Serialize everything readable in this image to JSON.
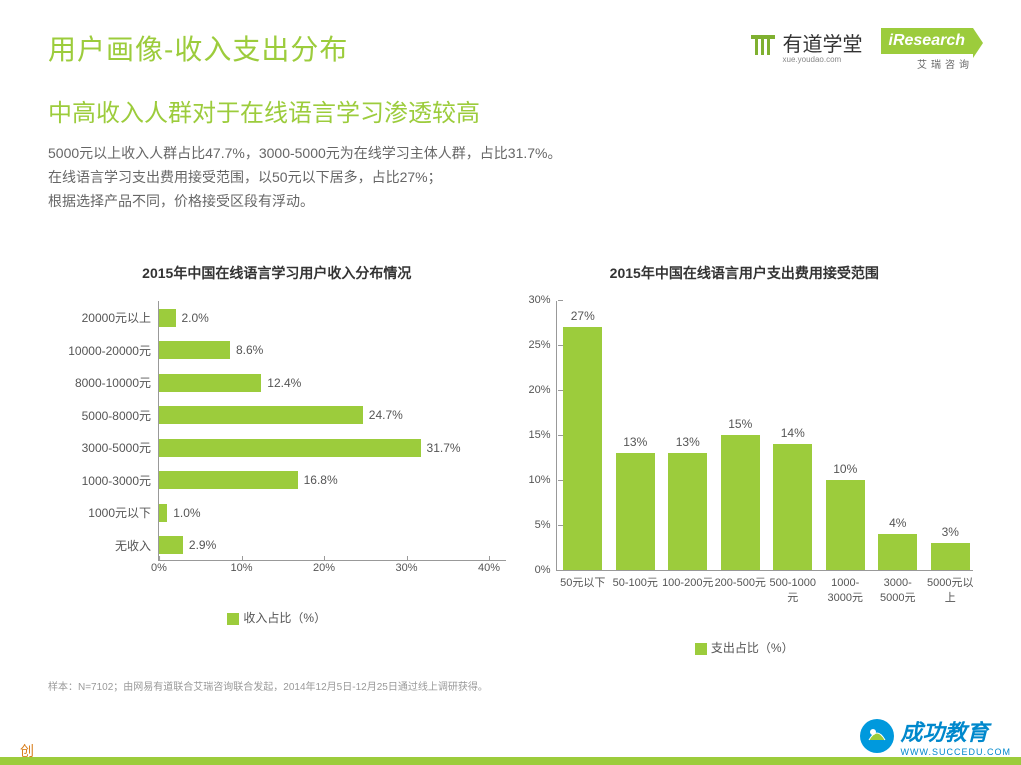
{
  "header": {
    "title": "用户画像-收入支出分布",
    "youdao_name": "有道学堂",
    "youdao_url": "xue.youdao.com",
    "iresearch_en": "iResearch",
    "iresearch_cn": "艾瑞咨询"
  },
  "subtitle": "中高收入人群对于在线语言学习渗透较高",
  "description": {
    "line1": "5000元以上收入人群占比47.7%，3000-5000元为在线学习主体人群，占比31.7%。",
    "line2": "在线语言学习支出费用接受范围，以50元以下居多，占比27%；",
    "line3": "根据选择产品不同，价格接受区段有浮动。"
  },
  "income_chart": {
    "type": "horizontal-bar",
    "title": "2015年中国在线语言学习用户收入分布情况",
    "categories": [
      "20000元以上",
      "10000-20000元",
      "8000-10000元",
      "5000-8000元",
      "3000-5000元",
      "1000-3000元",
      "1000元以下",
      "无收入"
    ],
    "values": [
      2.0,
      8.6,
      12.4,
      24.7,
      31.7,
      16.8,
      1.0,
      2.9
    ],
    "value_labels": [
      "2.0%",
      "8.6%",
      "12.4%",
      "24.7%",
      "31.7%",
      "16.8%",
      "1.0%",
      "2.9%"
    ],
    "bar_color": "#9ccc3c",
    "xlim": [
      0,
      40
    ],
    "xtick_step": 10,
    "xtick_labels": [
      "0%",
      "10%",
      "20%",
      "30%",
      "40%"
    ],
    "legend": "收入占比（%）",
    "label_fontsize": 12,
    "background_color": "#ffffff",
    "axis_color": "#999999"
  },
  "spending_chart": {
    "type": "vertical-bar",
    "title": "2015年中国在线语言用户支出费用接受范围",
    "categories": [
      "50元以下",
      "50-100元",
      "100-200元",
      "200-500元",
      "500-1000元",
      "1000-3000元",
      "3000-5000元",
      "5000元以上"
    ],
    "values": [
      27,
      13,
      13,
      15,
      14,
      10,
      4,
      3
    ],
    "value_labels": [
      "27%",
      "13%",
      "13%",
      "15%",
      "14%",
      "10%",
      "4%",
      "3%"
    ],
    "bar_color": "#9ccc3c",
    "ylim": [
      0,
      30
    ],
    "ytick_step": 5,
    "ytick_labels": [
      "0%",
      "5%",
      "10%",
      "15%",
      "20%",
      "25%",
      "30%"
    ],
    "legend": "支出占比（%）",
    "label_fontsize": 12,
    "background_color": "#ffffff",
    "axis_color": "#999999",
    "bar_width_ratio": 0.75
  },
  "footnote": "样本：N=7102；由网易有道联合艾瑞咨询联合发起，2014年12月5日-12月25日通过线上调研获得。",
  "watermark": {
    "brand": "成功教育",
    "url": "WWW.SUCCEDU.COM"
  },
  "colors": {
    "accent": "#9ccc3c",
    "text": "#555555",
    "muted": "#999999"
  }
}
